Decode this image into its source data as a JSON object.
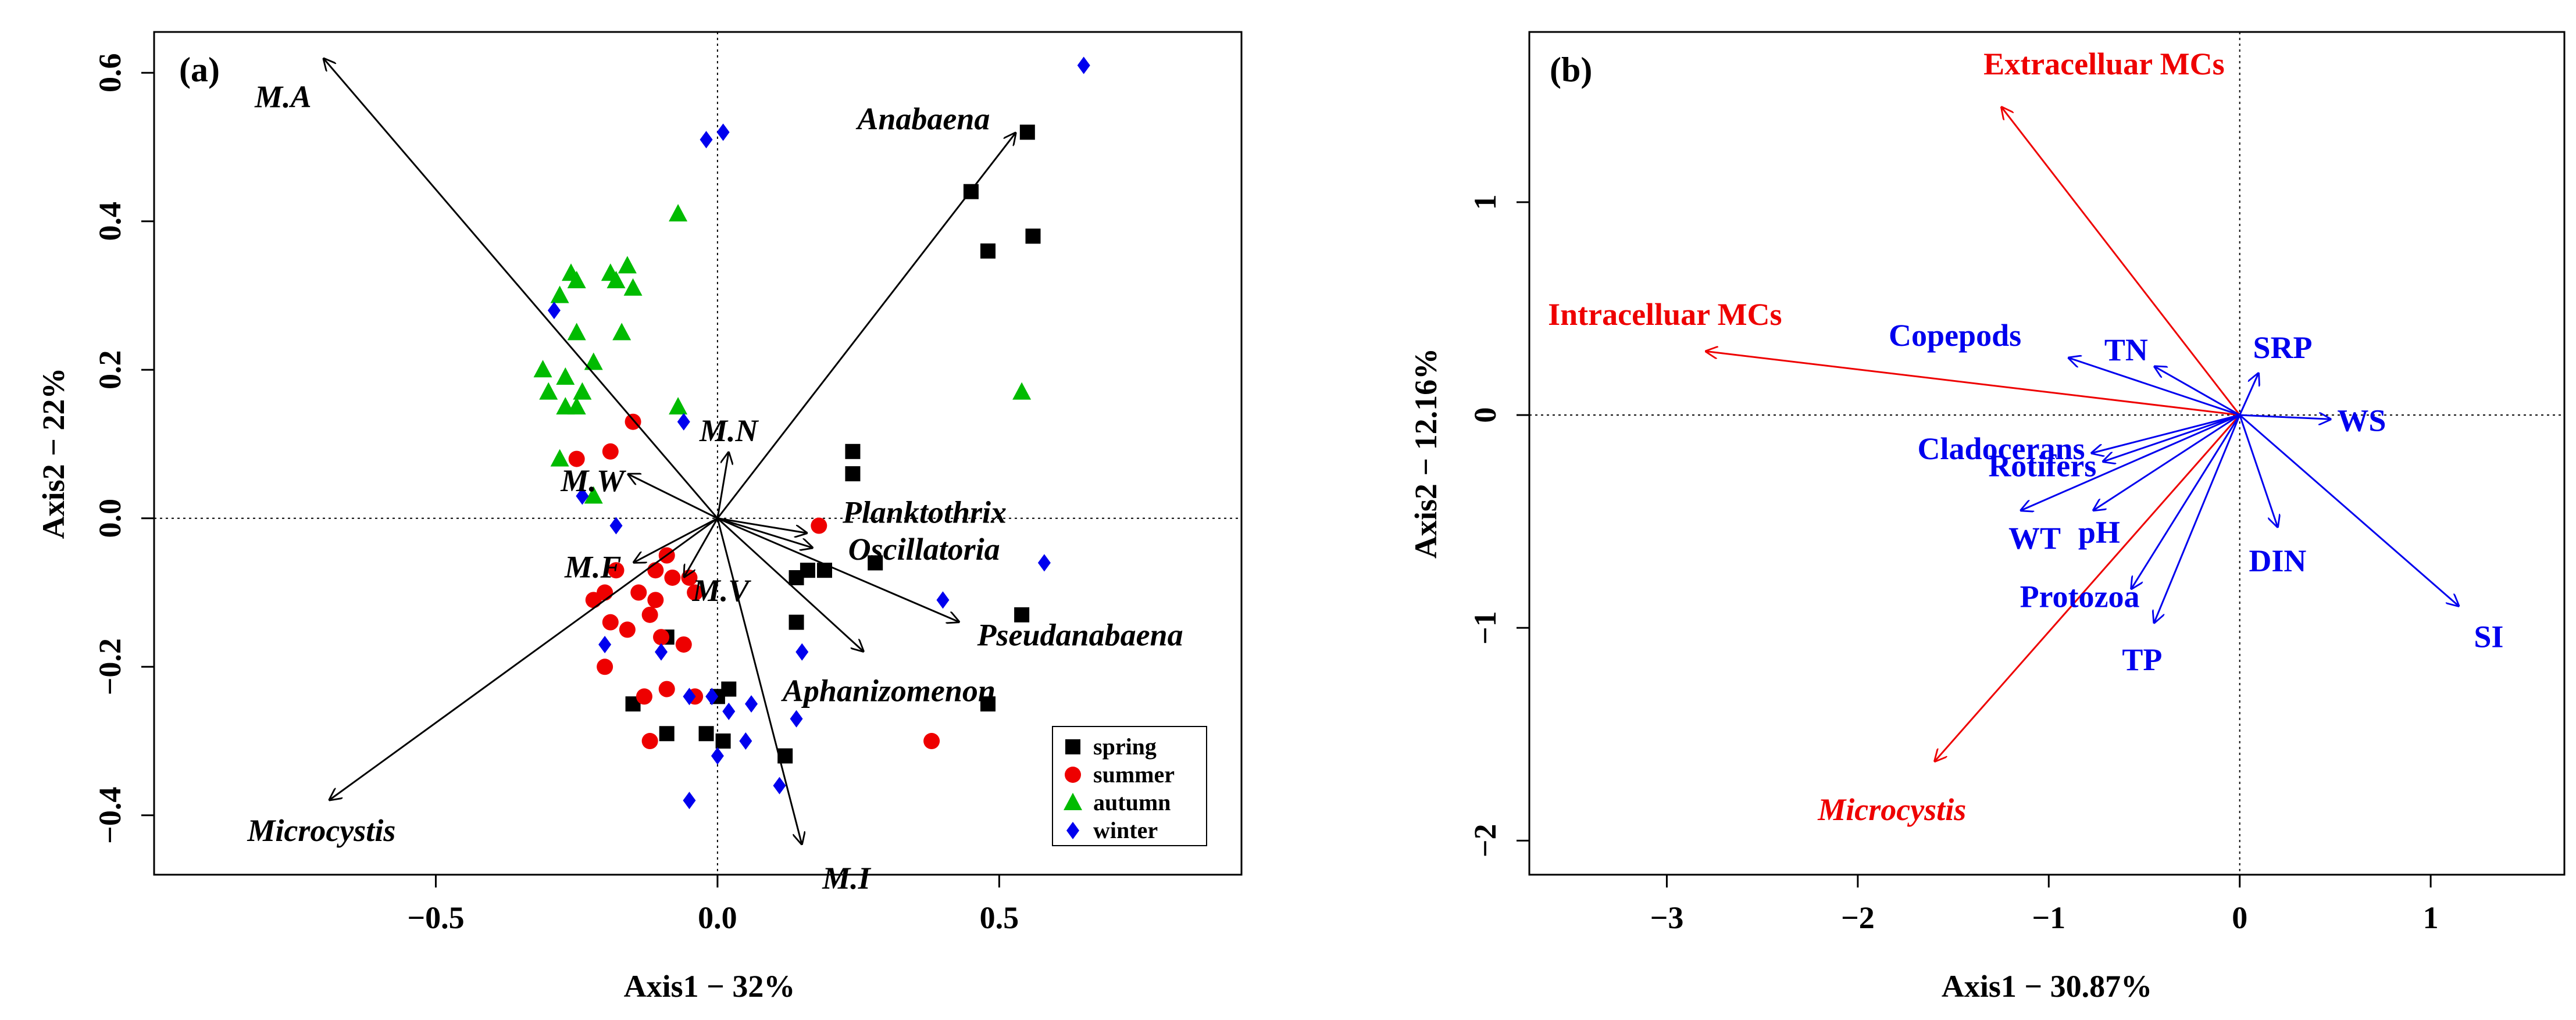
{
  "chart_data": [
    {
      "type": "scatter",
      "panel_label": "(a)",
      "xlabel": "Axis1 − 32%",
      "ylabel": "Axis2 − 22%",
      "xlim": [
        -1.0,
        0.93
      ],
      "ylim": [
        -0.48,
        0.655
      ],
      "xticks": [
        -0.5,
        0.0,
        0.5
      ],
      "xtick_labels": [
        "−0.5",
        "0.0",
        "0.5"
      ],
      "yticks": [
        -0.4,
        -0.2,
        0.0,
        0.2,
        0.4,
        0.6
      ],
      "ytick_labels": [
        "−0.4",
        "−0.2",
        "0.0",
        "0.2",
        "0.4",
        "0.6"
      ],
      "reference_lines": {
        "x": 0,
        "y": 0
      },
      "colors": {
        "spring": "#000000",
        "summer": "#ee0000",
        "autumn": "#00bb00",
        "winter": "#0000ee"
      },
      "legend": {
        "position": "bottom-right",
        "entries": [
          "spring",
          "summer",
          "autumn",
          "winter"
        ]
      },
      "series": [
        {
          "name": "spring",
          "marker": "square",
          "points": [
            [
              0.55,
              0.52
            ],
            [
              0.56,
              0.38
            ],
            [
              0.45,
              0.44
            ],
            [
              0.48,
              0.36
            ],
            [
              0.24,
              0.09
            ],
            [
              0.24,
              0.06
            ],
            [
              0.28,
              -0.06
            ],
            [
              0.19,
              -0.07
            ],
            [
              0.16,
              -0.07
            ],
            [
              0.14,
              -0.08
            ],
            [
              0.14,
              -0.14
            ],
            [
              0.54,
              -0.13
            ],
            [
              -0.09,
              -0.16
            ],
            [
              0.48,
              -0.25
            ],
            [
              0.02,
              -0.23
            ],
            [
              0.0,
              -0.24
            ],
            [
              -0.15,
              -0.25
            ],
            [
              0.01,
              -0.3
            ],
            [
              -0.02,
              -0.29
            ],
            [
              -0.09,
              -0.29
            ],
            [
              0.12,
              -0.32
            ]
          ]
        },
        {
          "name": "summer",
          "marker": "circle",
          "points": [
            [
              -0.25,
              0.08
            ],
            [
              -0.19,
              0.09
            ],
            [
              -0.15,
              0.13
            ],
            [
              0.18,
              -0.01
            ],
            [
              -0.09,
              -0.05
            ],
            [
              -0.11,
              -0.07
            ],
            [
              -0.18,
              -0.07
            ],
            [
              -0.08,
              -0.08
            ],
            [
              -0.05,
              -0.08
            ],
            [
              -0.2,
              -0.1
            ],
            [
              -0.14,
              -0.1
            ],
            [
              -0.22,
              -0.11
            ],
            [
              -0.11,
              -0.11
            ],
            [
              -0.04,
              -0.1
            ],
            [
              -0.19,
              -0.14
            ],
            [
              -0.12,
              -0.13
            ],
            [
              -0.16,
              -0.15
            ],
            [
              -0.1,
              -0.16
            ],
            [
              -0.06,
              -0.17
            ],
            [
              -0.2,
              -0.2
            ],
            [
              -0.09,
              -0.23
            ],
            [
              -0.04,
              -0.24
            ],
            [
              -0.13,
              -0.24
            ],
            [
              -0.12,
              -0.3
            ],
            [
              0.38,
              -0.3
            ]
          ]
        },
        {
          "name": "autumn",
          "marker": "triangle",
          "points": [
            [
              -0.07,
              0.41
            ],
            [
              -0.25,
              0.32
            ],
            [
              -0.19,
              0.33
            ],
            [
              -0.16,
              0.34
            ],
            [
              -0.26,
              0.33
            ],
            [
              -0.18,
              0.32
            ],
            [
              -0.15,
              0.31
            ],
            [
              -0.28,
              0.3
            ],
            [
              -0.25,
              0.25
            ],
            [
              -0.17,
              0.25
            ],
            [
              -0.22,
              0.21
            ],
            [
              -0.27,
              0.19
            ],
            [
              -0.24,
              0.17
            ],
            [
              -0.31,
              0.2
            ],
            [
              -0.3,
              0.17
            ],
            [
              -0.25,
              0.15
            ],
            [
              -0.27,
              0.15
            ],
            [
              -0.07,
              0.15
            ],
            [
              -0.28,
              0.08
            ],
            [
              -0.22,
              0.03
            ],
            [
              0.54,
              0.17
            ]
          ]
        },
        {
          "name": "winter",
          "marker": "diamond",
          "points": [
            [
              0.65,
              0.61
            ],
            [
              0.01,
              0.52
            ],
            [
              -0.02,
              0.51
            ],
            [
              -0.29,
              0.28
            ],
            [
              -0.06,
              0.13
            ],
            [
              -0.18,
              -0.01
            ],
            [
              -0.1,
              -0.18
            ],
            [
              0.4,
              -0.11
            ],
            [
              0.58,
              -0.06
            ],
            [
              -0.05,
              -0.24
            ],
            [
              0.06,
              -0.25
            ],
            [
              -0.01,
              -0.24
            ],
            [
              0.02,
              -0.26
            ],
            [
              0.14,
              -0.27
            ],
            [
              0.05,
              -0.3
            ],
            [
              0.11,
              -0.36
            ],
            [
              0.0,
              -0.32
            ],
            [
              0.15,
              -0.18
            ],
            [
              -0.05,
              -0.38
            ],
            [
              -0.2,
              -0.17
            ],
            [
              -0.24,
              0.03
            ]
          ]
        }
      ],
      "vectors": [
        {
          "label": "Anabaena",
          "x": 0.53,
          "y": 0.52
        },
        {
          "label": "M.A",
          "x": -0.7,
          "y": 0.62
        },
        {
          "label": "M.N",
          "x": 0.02,
          "y": 0.09
        },
        {
          "label": "M.W",
          "x": -0.16,
          "y": 0.06
        },
        {
          "label": "Planktothrix",
          "x": 0.16,
          "y": -0.02
        },
        {
          "label": "Oscillatoria",
          "x": 0.17,
          "y": -0.04
        },
        {
          "label": "Pseudanabaena",
          "x": 0.43,
          "y": -0.14
        },
        {
          "label": "M.F",
          "x": -0.15,
          "y": -0.06
        },
        {
          "label": "M.V",
          "x": -0.06,
          "y": -0.08
        },
        {
          "label": "Aphanizomenon",
          "x": 0.26,
          "y": -0.18
        },
        {
          "label": "Microcystis",
          "x": -0.69,
          "y": -0.38
        },
        {
          "label": "M.I",
          "x": 0.15,
          "y": -0.44
        }
      ]
    },
    {
      "type": "scatter",
      "panel_label": "(b)",
      "xlabel": "Axis1 − 30.87%",
      "ylabel": "Axis2 − 12.16%",
      "xlim": [
        -3.72,
        1.7
      ],
      "ylim": [
        -2.16,
        1.8
      ],
      "xticks": [
        -3,
        -2,
        -1,
        0,
        1
      ],
      "xtick_labels": [
        "−3",
        "−2",
        "−1",
        "0",
        "1"
      ],
      "yticks": [
        -2,
        -1,
        0,
        1
      ],
      "ytick_labels": [
        "−2",
        "−1",
        "0",
        "1"
      ],
      "reference_lines": {
        "x": 0,
        "y": 0
      },
      "colors": {
        "response": "#ee0000",
        "explanatory": "#0000ee"
      },
      "vectors": [
        {
          "label": "Extracelluar MCs",
          "x": -1.25,
          "y": 1.45,
          "group": "response",
          "italic": false
        },
        {
          "label": "Intracelluar MCs",
          "x": -2.8,
          "y": 0.3,
          "group": "response",
          "italic": false
        },
        {
          "label": "Microcystis",
          "x": -1.6,
          "y": -1.63,
          "group": "response",
          "italic": true
        },
        {
          "label": "Copepods",
          "x": -0.9,
          "y": 0.27,
          "group": "explanatory"
        },
        {
          "label": "TN",
          "x": -0.45,
          "y": 0.23,
          "group": "explanatory"
        },
        {
          "label": "SRP",
          "x": 0.1,
          "y": 0.2,
          "group": "explanatory"
        },
        {
          "label": "WS",
          "x": 0.48,
          "y": -0.02,
          "group": "explanatory"
        },
        {
          "label": "Cladocerans",
          "x": -0.78,
          "y": -0.18,
          "group": "explanatory"
        },
        {
          "label": "Rotifers",
          "x": -0.72,
          "y": -0.22,
          "group": "explanatory"
        },
        {
          "label": "WT",
          "x": -1.15,
          "y": -0.45,
          "group": "explanatory"
        },
        {
          "label": "pH",
          "x": -0.77,
          "y": -0.45,
          "group": "explanatory"
        },
        {
          "label": "DIN",
          "x": 0.2,
          "y": -0.53,
          "group": "explanatory"
        },
        {
          "label": "Protozoa",
          "x": -0.57,
          "y": -0.82,
          "group": "explanatory"
        },
        {
          "label": "TP",
          "x": -0.45,
          "y": -0.98,
          "group": "explanatory"
        },
        {
          "label": "SI",
          "x": 1.15,
          "y": -0.9,
          "group": "explanatory"
        }
      ]
    }
  ]
}
